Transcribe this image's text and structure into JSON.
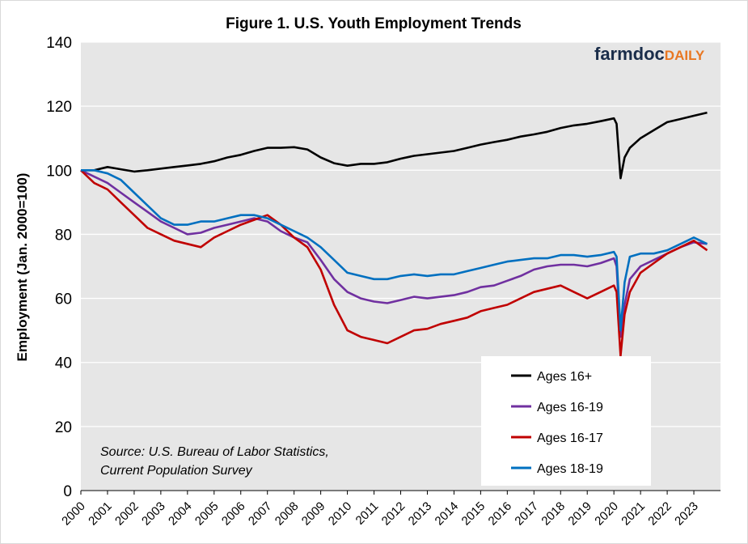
{
  "chart_data": {
    "type": "line",
    "title": "Figure 1. U.S. Youth Employment Trends",
    "ylabel": "Employment (Jan. 2000=100)",
    "xlabel": "",
    "ylim": [
      0,
      140
    ],
    "yticks": [
      0,
      20,
      40,
      60,
      80,
      100,
      120,
      140
    ],
    "xlim": [
      2000,
      2024
    ],
    "xticks": [
      "2000",
      "2001",
      "2002",
      "2003",
      "2004",
      "2005",
      "2006",
      "2007",
      "2008",
      "2009",
      "2010",
      "2011",
      "2012",
      "2013",
      "2014",
      "2015",
      "2016",
      "2017",
      "2018",
      "2019",
      "2020",
      "2021",
      "2022",
      "2023"
    ],
    "grid": "horizontal",
    "legend_placement": "bottom-right",
    "annotation": [
      "Source: U.S. Bureau of Labor Statistics,",
      "Current Population Survey"
    ],
    "logo": "farmdocDAILY",
    "series": [
      {
        "name": "Ages 16+",
        "color": "#000000",
        "x": [
          2000.0,
          2000.5,
          2001.0,
          2001.5,
          2002.0,
          2002.5,
          2003.0,
          2003.5,
          2004.0,
          2004.5,
          2005.0,
          2005.5,
          2006.0,
          2006.5,
          2007.0,
          2007.5,
          2008.0,
          2008.5,
          2009.0,
          2009.5,
          2010.0,
          2010.5,
          2011.0,
          2011.5,
          2012.0,
          2012.5,
          2013.0,
          2013.5,
          2014.0,
          2014.5,
          2015.0,
          2015.5,
          2016.0,
          2016.5,
          2017.0,
          2017.5,
          2018.0,
          2018.5,
          2019.0,
          2019.5,
          2020.0,
          2020.1,
          2020.25,
          2020.4,
          2020.6,
          2021.0,
          2021.5,
          2022.0,
          2022.5,
          2023.0,
          2023.5
        ],
        "values": [
          100,
          100,
          101,
          100.3,
          99.6,
          100,
          100.5,
          101,
          101.5,
          102,
          102.8,
          104,
          104.8,
          106,
          107,
          107,
          107.2,
          106.5,
          104,
          102.2,
          101.4,
          102,
          102,
          102.5,
          103.6,
          104.5,
          105,
          105.5,
          106,
          107,
          108,
          108.8,
          109.5,
          110.5,
          111.2,
          112,
          113.2,
          114,
          114.5,
          115.3,
          116.2,
          114.5,
          97.5,
          104,
          107,
          110,
          112.5,
          115,
          116,
          117,
          118
        ]
      },
      {
        "name": "Ages 16-19",
        "color": "#7030a0",
        "x": [
          2000.0,
          2000.5,
          2001.0,
          2001.5,
          2002.0,
          2002.5,
          2003.0,
          2003.5,
          2004.0,
          2004.5,
          2005.0,
          2005.5,
          2006.0,
          2006.5,
          2007.0,
          2007.5,
          2008.0,
          2008.5,
          2009.0,
          2009.5,
          2010.0,
          2010.5,
          2011.0,
          2011.5,
          2012.0,
          2012.5,
          2013.0,
          2013.5,
          2014.0,
          2014.5,
          2015.0,
          2015.5,
          2016.0,
          2016.5,
          2017.0,
          2017.5,
          2018.0,
          2018.5,
          2019.0,
          2019.5,
          2020.0,
          2020.1,
          2020.25,
          2020.4,
          2020.6,
          2021.0,
          2021.5,
          2022.0,
          2022.5,
          2023.0,
          2023.5
        ],
        "values": [
          100,
          98,
          96,
          93,
          90,
          87,
          84,
          82,
          80,
          80.5,
          82,
          83,
          84,
          85,
          84,
          81,
          79,
          77.5,
          72,
          66,
          62,
          60,
          59,
          58.5,
          59.5,
          60.5,
          60,
          60.5,
          61,
          62,
          63.5,
          64,
          65.5,
          67,
          69,
          70,
          70.5,
          70.5,
          70,
          71,
          72.5,
          70,
          48,
          58,
          66,
          70,
          72,
          74,
          76,
          77.5,
          77
        ]
      },
      {
        "name": "Ages 16-17",
        "color": "#c00000",
        "x": [
          2000.0,
          2000.5,
          2001.0,
          2001.5,
          2002.0,
          2002.5,
          2003.0,
          2003.5,
          2004.0,
          2004.5,
          2005.0,
          2005.5,
          2006.0,
          2006.5,
          2007.0,
          2007.5,
          2008.0,
          2008.5,
          2009.0,
          2009.5,
          2010.0,
          2010.5,
          2011.0,
          2011.5,
          2012.0,
          2012.5,
          2013.0,
          2013.5,
          2014.0,
          2014.5,
          2015.0,
          2015.5,
          2016.0,
          2016.5,
          2017.0,
          2017.5,
          2018.0,
          2018.5,
          2019.0,
          2019.5,
          2020.0,
          2020.1,
          2020.25,
          2020.4,
          2020.6,
          2021.0,
          2021.5,
          2022.0,
          2022.5,
          2023.0,
          2023.5
        ],
        "values": [
          100,
          96,
          94,
          90,
          86,
          82,
          80,
          78,
          77,
          76,
          79,
          81,
          83,
          84.5,
          86,
          83,
          79,
          76,
          69,
          58,
          50,
          48,
          47,
          46,
          48,
          50,
          50.5,
          52,
          53,
          54,
          56,
          57,
          58,
          60,
          62,
          63,
          64,
          62,
          60,
          62,
          64,
          62,
          42,
          55,
          62,
          68,
          71,
          74,
          76,
          78,
          75
        ]
      },
      {
        "name": "Ages 18-19",
        "color": "#0070c0",
        "x": [
          2000.0,
          2000.5,
          2001.0,
          2001.5,
          2002.0,
          2002.5,
          2003.0,
          2003.5,
          2004.0,
          2004.5,
          2005.0,
          2005.5,
          2006.0,
          2006.5,
          2007.0,
          2007.5,
          2008.0,
          2008.5,
          2009.0,
          2009.5,
          2010.0,
          2010.5,
          2011.0,
          2011.5,
          2012.0,
          2012.5,
          2013.0,
          2013.5,
          2014.0,
          2014.5,
          2015.0,
          2015.5,
          2016.0,
          2016.5,
          2017.0,
          2017.5,
          2018.0,
          2018.5,
          2019.0,
          2019.5,
          2020.0,
          2020.1,
          2020.25,
          2020.4,
          2020.6,
          2021.0,
          2021.5,
          2022.0,
          2022.5,
          2023.0,
          2023.5
        ],
        "values": [
          100,
          100,
          99,
          97,
          93,
          89,
          85,
          83,
          83,
          84,
          84,
          85,
          86,
          86,
          85,
          83,
          81,
          79,
          76,
          72,
          68,
          67,
          66,
          66,
          67,
          67.5,
          67,
          67.5,
          67.5,
          68.5,
          69.5,
          70.5,
          71.5,
          72,
          72.5,
          72.5,
          73.5,
          73.5,
          73,
          73.5,
          74.5,
          73,
          50,
          65,
          73,
          74,
          74,
          75,
          77,
          79,
          77
        ]
      }
    ]
  }
}
